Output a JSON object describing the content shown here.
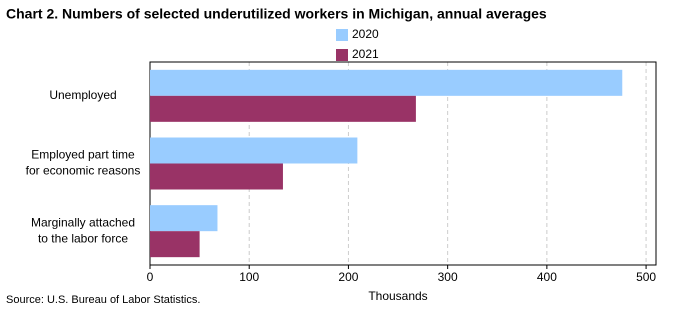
{
  "chart_data": {
    "type": "bar",
    "orientation": "horizontal",
    "title": "Chart 2.  Numbers of selected underutilized workers in Michigan, annual averages",
    "categories": [
      [
        "Unemployed"
      ],
      [
        "Employed part time",
        "for economic reasons"
      ],
      [
        "Marginally attached",
        "to the labor force"
      ]
    ],
    "series": [
      {
        "name": "2020",
        "color": "#99ccff",
        "values": [
          476,
          209,
          68
        ]
      },
      {
        "name": "2021",
        "color": "#993366",
        "values": [
          268,
          134,
          50
        ]
      }
    ],
    "xlim": [
      0,
      510
    ],
    "xticks": [
      0,
      100,
      200,
      300,
      400,
      500
    ],
    "x_label": "Thousands",
    "grid": true,
    "source": "Source: U.S. Bureau of Labor Statistics."
  }
}
